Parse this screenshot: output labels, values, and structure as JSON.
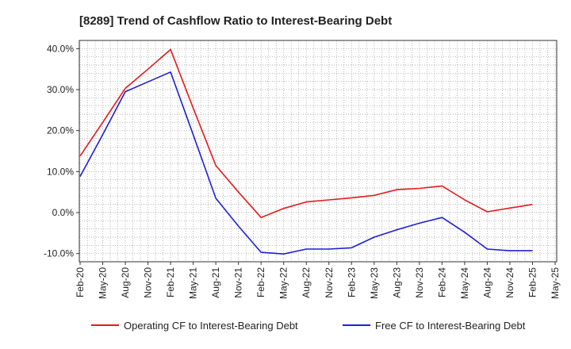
{
  "chart_data": {
    "type": "line",
    "title": "[8289]  Trend of Cashflow Ratio to Interest-Bearing Debt",
    "xlabel": "",
    "ylabel": "",
    "x_ticks": [
      "Feb-20",
      "May-20",
      "Aug-20",
      "Nov-20",
      "Feb-21",
      "May-21",
      "Aug-21",
      "Nov-21",
      "Feb-22",
      "May-22",
      "Aug-22",
      "Nov-22",
      "Feb-23",
      "May-23",
      "Aug-23",
      "Nov-23",
      "Feb-24",
      "May-24",
      "Aug-24",
      "Nov-24",
      "Feb-25",
      "May-25"
    ],
    "x": [
      "Feb-20",
      "May-20",
      "Aug-20",
      "Nov-20",
      "Feb-21",
      "May-21",
      "Aug-21",
      "Nov-21",
      "Feb-22",
      "May-22",
      "Aug-22",
      "Nov-22",
      "Feb-23",
      "May-23",
      "Aug-23",
      "Nov-23",
      "Feb-24",
      "May-24",
      "Aug-24",
      "Nov-24",
      "Feb-25"
    ],
    "ylim": [
      -12,
      42
    ],
    "y_ticks": [
      -10,
      0,
      10,
      20,
      30,
      40
    ],
    "y_tick_labels": [
      "-10.0%",
      "0.0%",
      "10.0%",
      "20.0%",
      "30.0%",
      "40.0%"
    ],
    "grid": true,
    "legend_position": "bottom",
    "series": [
      {
        "name": "Operating CF to Interest-Bearing Debt",
        "color": "#e31a1c",
        "values": [
          13.8,
          22.0,
          30.3,
          35.0,
          39.8,
          25.5,
          11.5,
          5.0,
          -1.2,
          1.0,
          2.6,
          3.1,
          3.6,
          4.2,
          5.6,
          5.9,
          6.5,
          3.1,
          0.2,
          1.1,
          2.0
        ]
      },
      {
        "name": "Free CF to Interest-Bearing Debt",
        "color": "#1f1fd6",
        "values": [
          8.8,
          19.0,
          29.5,
          31.9,
          34.3,
          19.0,
          3.5,
          -3.3,
          -9.7,
          -10.1,
          -8.9,
          -8.9,
          -8.6,
          -6.0,
          -4.2,
          -2.6,
          -1.2,
          -4.8,
          -8.9,
          -9.3,
          -9.3
        ]
      }
    ]
  }
}
